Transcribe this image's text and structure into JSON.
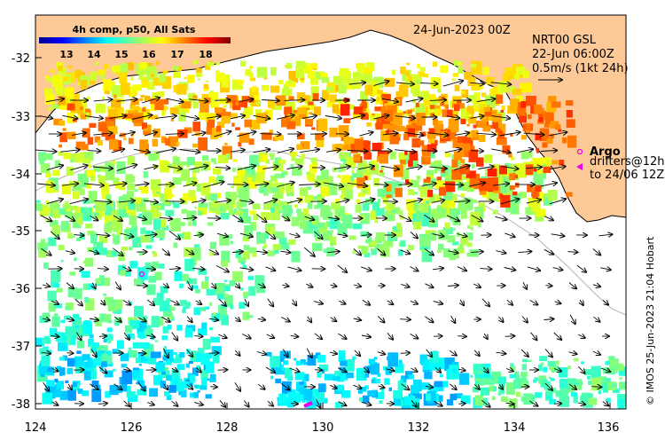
{
  "map": {
    "title": "24-Jun-2023 00Z",
    "product": "NRT00 GSL",
    "product_time": "22-Jun 06:00Z",
    "vector_scale": "0.5m/s (1kt 24h)",
    "credit": "© IMOS 25-Jun-2023 21:04 Hobart"
  },
  "colorbar": {
    "title": "4h comp, p50, All Sats",
    "ticks": [
      "13",
      "14",
      "15",
      "16",
      "17",
      "18"
    ],
    "range_c": [
      12.2,
      18.9
    ]
  },
  "legend": {
    "argo": "Argo",
    "drifters": "drifters@12h",
    "drifters_to": "to 24/06 12Z"
  },
  "axes": {
    "lon_ticks": [
      "124",
      "126",
      "128",
      "130",
      "132",
      "134",
      "136"
    ],
    "lat_ticks": [
      "-32",
      "-33",
      "-34",
      "-35",
      "-36",
      "-37",
      "-38"
    ],
    "lon_range": [
      124,
      136.2
    ],
    "lat_range": [
      -38.05,
      -31.3
    ]
  },
  "colors": {
    "land": "#fdc996",
    "coast": "#000000",
    "argo": "#e600e6"
  }
}
